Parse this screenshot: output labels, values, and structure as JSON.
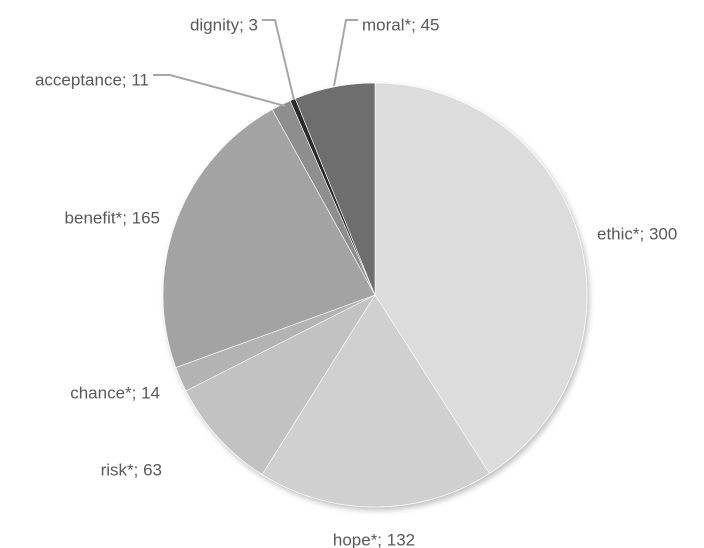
{
  "chart_data": {
    "type": "pie",
    "title": "",
    "legend": "none",
    "start_angle_deg": 0,
    "direction": "clockwise",
    "slices": [
      {
        "category": "ethic*",
        "value": 300,
        "label": "ethic*; 300",
        "color": "#dcdcdc"
      },
      {
        "category": "hope*",
        "value": 132,
        "label": "hope*; 132",
        "color": "#d0d0d0"
      },
      {
        "category": "risk*",
        "value": 63,
        "label": "risk*; 63",
        "color": "#c2c2c2"
      },
      {
        "category": "chance*",
        "value": 14,
        "label": "chance*; 14",
        "color": "#b3b3b3"
      },
      {
        "category": "benefit*",
        "value": 165,
        "label": "benefit*; 165",
        "color": "#a3a3a3"
      },
      {
        "category": "acceptance",
        "value": 11,
        "label": "acceptance; 11",
        "color": "#8e8e8e"
      },
      {
        "category": "dignity",
        "value": 3,
        "label": "dignity; 3",
        "color": "#2a2a2a"
      },
      {
        "category": "moral*",
        "value": 45,
        "label": "moral*; 45",
        "color": "#6e6e6e"
      }
    ]
  }
}
